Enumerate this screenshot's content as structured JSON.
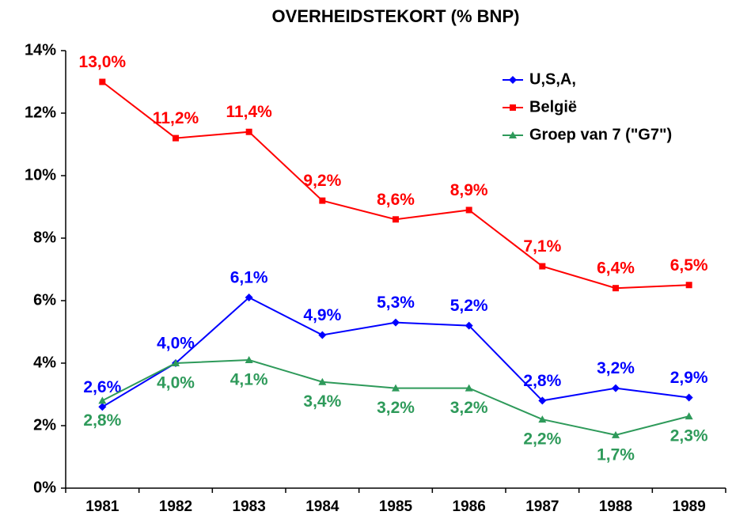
{
  "chart_data": {
    "type": "line",
    "title": "OVERHEIDSTEKORT  (% BNP)",
    "categories": [
      "1981",
      "1982",
      "1983",
      "1984",
      "1985",
      "1986",
      "1987",
      "1988",
      "1989"
    ],
    "series": [
      {
        "name": "U,S,A,",
        "color": "#0000ff",
        "marker": "diamond",
        "values": [
          2.6,
          4.0,
          6.1,
          4.9,
          5.3,
          5.2,
          2.8,
          3.2,
          2.9
        ],
        "value_labels": [
          "2,6%",
          "4,0%",
          "6,1%",
          "4,9%",
          "5,3%",
          "5,2%",
          "2,8%",
          "3,2%",
          "2,9%"
        ]
      },
      {
        "name": "België",
        "color": "#ff0000",
        "marker": "square",
        "values": [
          13.0,
          11.2,
          11.4,
          9.2,
          8.6,
          8.9,
          7.1,
          6.4,
          6.5
        ],
        "value_labels": [
          "13,0%",
          "11,2%",
          "11,4%",
          "9,2%",
          "8,6%",
          "8,9%",
          "7,1%",
          "6,4%",
          "6,5%"
        ]
      },
      {
        "name": "Groep van 7 (\"G7\")",
        "color": "#2e9a5a",
        "marker": "triangle",
        "values": [
          2.8,
          4.0,
          4.1,
          3.4,
          3.2,
          3.2,
          2.2,
          1.7,
          2.3
        ],
        "value_labels": [
          "2,8%",
          "4,0%",
          "4,1%",
          "3,4%",
          "3,2%",
          "3,2%",
          "2,2%",
          "1,7%",
          "2,3%"
        ]
      }
    ],
    "ylim": [
      0,
      14
    ],
    "yticks": [
      {
        "value": 0,
        "label": "0%"
      },
      {
        "value": 2,
        "label": "2%"
      },
      {
        "value": 4,
        "label": "4%"
      },
      {
        "value": 6,
        "label": "6%"
      },
      {
        "value": 8,
        "label": "8%"
      },
      {
        "value": 10,
        "label": "10%"
      },
      {
        "value": 12,
        "label": "12%"
      },
      {
        "value": 14,
        "label": "14%"
      }
    ],
    "grid": false,
    "legend": "upper right"
  }
}
